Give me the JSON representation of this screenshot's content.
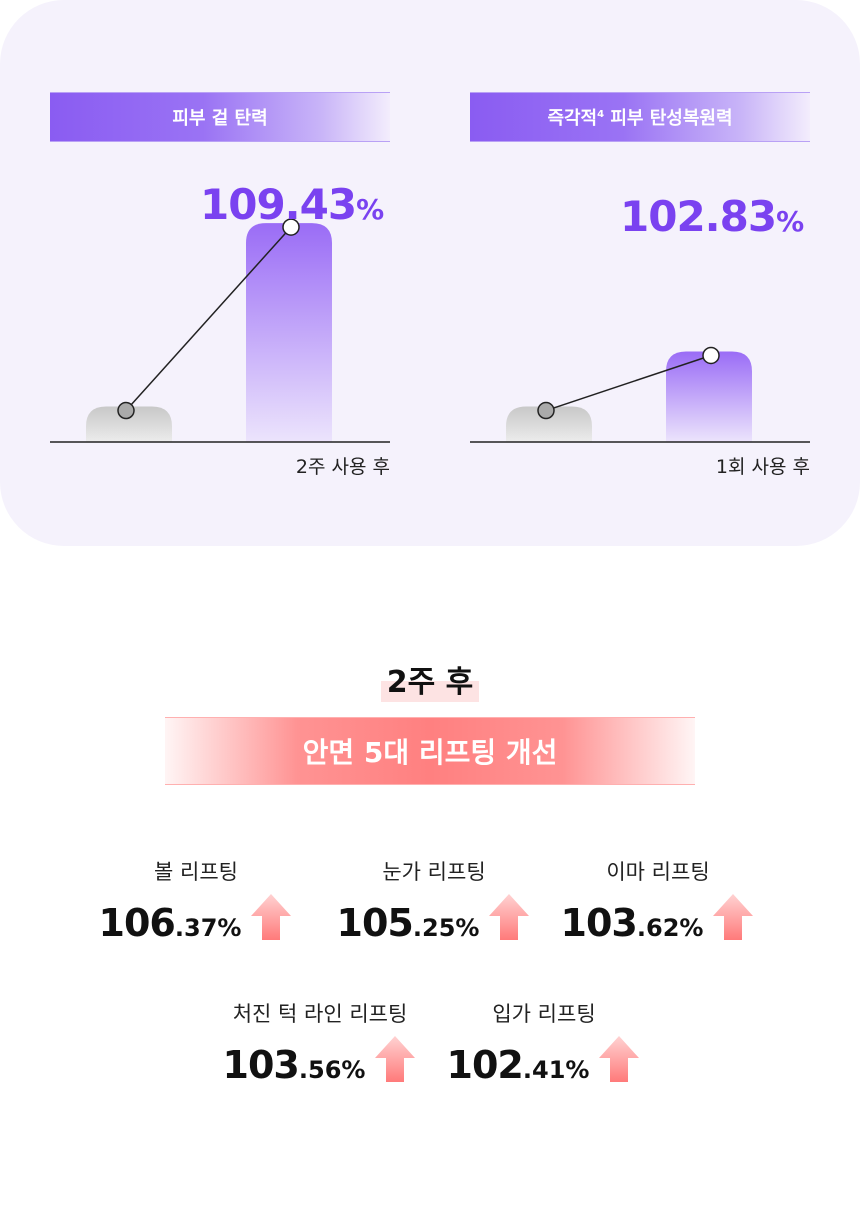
{
  "colors": {
    "purple_accent": "#7a42f0",
    "coral_accent": "#ff8080"
  },
  "chart_data": [
    {
      "type": "bar",
      "title": "피부 겉 탄력",
      "categories": [
        "",
        "2주 사용 후"
      ],
      "values": [
        100,
        109.43
      ],
      "value_label": "109.43",
      "value_unit": "%"
    },
    {
      "type": "bar",
      "title": "즉각적 피부 탄성복원력",
      "title_superscript": "4",
      "categories": [
        "",
        "1회 사용 후"
      ],
      "values": [
        100,
        102.83
      ],
      "value_label": "102.83",
      "value_unit": "%"
    }
  ],
  "section": {
    "period": "2주 후",
    "headline": "안면 5대 리프팅 개선"
  },
  "metrics": [
    {
      "label": "볼 리프팅",
      "int": "106",
      "dec": ".37%"
    },
    {
      "label": "눈가 리프팅",
      "int": "105",
      "dec": ".25%"
    },
    {
      "label": "이마 리프팅",
      "int": "103",
      "dec": ".62%"
    },
    {
      "label": "처진 턱 라인 리프팅",
      "int": "103",
      "dec": ".56%"
    },
    {
      "label": "입가 리프팅",
      "int": "102",
      "dec": ".41%"
    }
  ]
}
